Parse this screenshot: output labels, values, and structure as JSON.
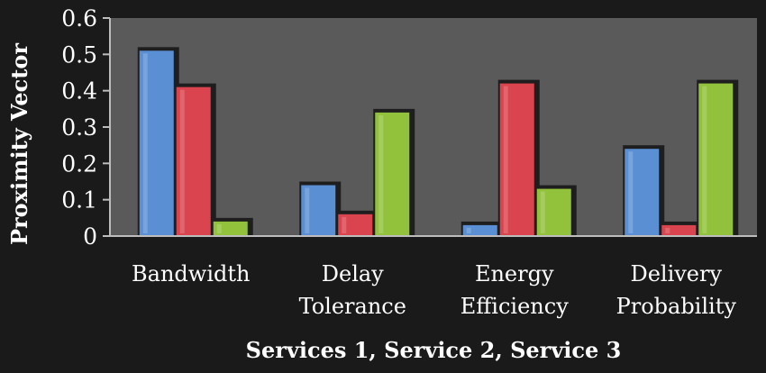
{
  "chart_data": {
    "type": "bar",
    "title": "",
    "xlabel": "Services 1, Service 2, Service 3",
    "ylabel": "Proximity Vector",
    "ylim": [
      0,
      0.6
    ],
    "yticks": [
      "0",
      "0.1",
      "0.2",
      "0.3",
      "0.4",
      "0.5",
      "0.6"
    ],
    "categories": [
      [
        "Bandwidth"
      ],
      [
        "Delay",
        "Tolerance"
      ],
      [
        "Energy",
        "Efficiency"
      ],
      [
        "Delivery",
        "Probability"
      ]
    ],
    "series": [
      {
        "values": [
          0.51,
          0.14,
          0.03,
          0.24
        ],
        "color": "#5b8fd4"
      },
      {
        "values": [
          0.41,
          0.06,
          0.42,
          0.03
        ],
        "color": "#d9444e"
      },
      {
        "values": [
          0.04,
          0.34,
          0.13,
          0.42
        ],
        "color": "#92c13c"
      }
    ],
    "grid": false,
    "legend": "none",
    "plot_background": "#5a5a5a",
    "page_background": "#1a1a1a"
  }
}
